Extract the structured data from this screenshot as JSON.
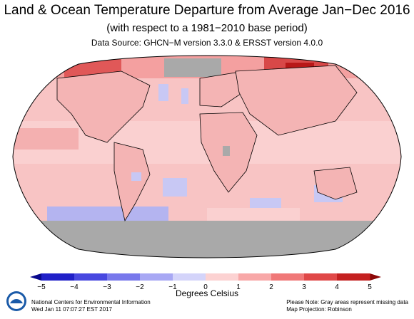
{
  "header": {
    "title": "Land & Ocean Temperature Departure from Average Jan−Dec 2016",
    "subtitle": "(with respect to a 1981−2010 base period)",
    "source": "Data Source: GHCN−M version 3.3.0 & ERSST version 4.0.0"
  },
  "legend": {
    "units": "Degrees Celsius",
    "ticks": [
      "−5",
      "−4",
      "−3",
      "−2",
      "−1",
      "0",
      "1",
      "2",
      "3",
      "4",
      "5"
    ],
    "range": [
      -5,
      5
    ],
    "colors": [
      "#08088c",
      "#2020c8",
      "#4848e0",
      "#7878ec",
      "#a8a8f4",
      "#d4d4fa",
      "#fcd2d2",
      "#f8a8a8",
      "#f07878",
      "#e04848",
      "#c42020",
      "#8c0808"
    ]
  },
  "map": {
    "projection": "Robinson",
    "missing_color": "#a9a9a9",
    "ocean_base_color": "#f8c4c4"
  },
  "footer": {
    "org": "National Centers for Environmental Information",
    "timestamp": "Wed Jan 11 07:07:27 EST 2017",
    "note": "Please Note: Gray areas represent missing data",
    "projection": "Map Projection: Robinson"
  },
  "logo": {
    "icon": "noaa-logo-icon"
  }
}
